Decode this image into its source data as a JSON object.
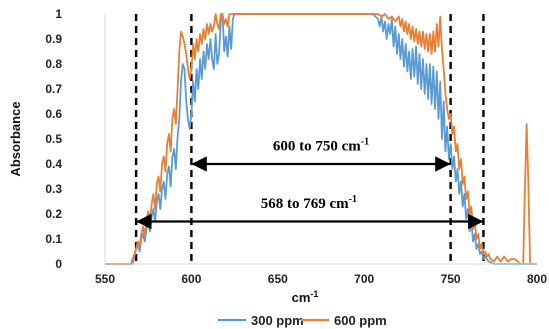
{
  "chart_data": {
    "type": "line",
    "xlabel": "cm",
    "xlabel_sup": "-1",
    "ylabel": "Absorbance",
    "xlim": [
      550,
      800
    ],
    "ylim": [
      0,
      1
    ],
    "x_ticks": [
      550,
      600,
      650,
      700,
      750,
      800
    ],
    "y_ticks": [
      0,
      0.1,
      0.2,
      0.3,
      0.4,
      0.5,
      0.6,
      0.7,
      0.8,
      0.9,
      1
    ],
    "grid": false,
    "legend": {
      "position": "bottom"
    },
    "series": [
      {
        "name": "300 ppm",
        "color": "#5B9BD5",
        "points": [
          [
            550,
            0
          ],
          [
            560,
            0
          ],
          [
            565,
            0
          ],
          [
            566,
            0.02
          ],
          [
            567,
            0.04
          ],
          [
            568,
            0.06
          ],
          [
            569,
            0.08
          ],
          [
            570,
            0.05
          ],
          [
            571,
            0.1
          ],
          [
            572,
            0.12
          ],
          [
            573,
            0.09
          ],
          [
            574,
            0.14
          ],
          [
            575,
            0.17
          ],
          [
            576,
            0.13
          ],
          [
            577,
            0.19
          ],
          [
            578,
            0.22
          ],
          [
            579,
            0.17
          ],
          [
            580,
            0.25
          ],
          [
            581,
            0.28
          ],
          [
            582,
            0.22
          ],
          [
            583,
            0.3
          ],
          [
            584,
            0.33
          ],
          [
            585,
            0.26
          ],
          [
            586,
            0.36
          ],
          [
            587,
            0.39
          ],
          [
            588,
            0.31
          ],
          [
            589,
            0.43
          ],
          [
            590,
            0.46
          ],
          [
            591,
            0.38
          ],
          [
            592,
            0.51
          ],
          [
            593,
            0.58
          ],
          [
            594,
            0.73
          ],
          [
            595,
            0.8
          ],
          [
            596,
            0.78
          ],
          [
            597,
            0.65
          ],
          [
            598,
            0.58
          ],
          [
            599,
            0.54
          ],
          [
            600,
            0.6
          ],
          [
            601,
            0.73
          ],
          [
            602,
            0.65
          ],
          [
            603,
            0.78
          ],
          [
            604,
            0.7
          ],
          [
            605,
            0.82
          ],
          [
            606,
            0.74
          ],
          [
            607,
            0.85
          ],
          [
            608,
            0.78
          ],
          [
            609,
            0.88
          ],
          [
            610,
            0.82
          ],
          [
            611,
            0.9
          ],
          [
            612,
            0.82
          ],
          [
            613,
            0.78
          ],
          [
            614,
            0.92
          ],
          [
            615,
            0.8
          ],
          [
            616,
            0.84
          ],
          [
            617,
            0.97
          ],
          [
            618,
            1.0
          ],
          [
            619,
            0.85
          ],
          [
            620,
            0.91
          ],
          [
            621,
            0.83
          ],
          [
            622,
            0.95
          ],
          [
            623,
            0.86
          ],
          [
            624,
            0.98
          ],
          [
            625,
            1.0
          ],
          [
            630,
            1.0
          ],
          [
            640,
            1.0
          ],
          [
            650,
            1.0
          ],
          [
            660,
            1.0
          ],
          [
            670,
            1.0
          ],
          [
            680,
            1.0
          ],
          [
            690,
            1.0
          ],
          [
            700,
            1.0
          ],
          [
            705,
            1.0
          ],
          [
            708,
            0.98
          ],
          [
            709,
            0.95
          ],
          [
            710,
            0.99
          ],
          [
            711,
            0.93
          ],
          [
            712,
            0.97
          ],
          [
            713,
            0.9
          ],
          [
            714,
            0.96
          ],
          [
            715,
            0.92
          ],
          [
            716,
            0.98
          ],
          [
            717,
            0.87
          ],
          [
            718,
            0.95
          ],
          [
            719,
            0.84
          ],
          [
            720,
            0.92
          ],
          [
            721,
            0.82
          ],
          [
            722,
            0.9
          ],
          [
            723,
            0.79
          ],
          [
            724,
            0.88
          ],
          [
            725,
            0.77
          ],
          [
            726,
            0.85
          ],
          [
            727,
            0.74
          ],
          [
            728,
            0.86
          ],
          [
            729,
            0.75
          ],
          [
            730,
            0.87
          ],
          [
            731,
            0.72
          ],
          [
            732,
            0.84
          ],
          [
            733,
            0.7
          ],
          [
            734,
            0.82
          ],
          [
            735,
            0.68
          ],
          [
            736,
            0.8
          ],
          [
            737,
            0.66
          ],
          [
            738,
            0.8
          ],
          [
            739,
            0.64
          ],
          [
            740,
            0.79
          ],
          [
            741,
            0.62
          ],
          [
            742,
            0.77
          ],
          [
            743,
            0.58
          ],
          [
            744,
            0.73
          ],
          [
            745,
            0.5
          ],
          [
            746,
            0.65
          ],
          [
            747,
            0.45
          ],
          [
            748,
            0.55
          ],
          [
            749,
            0.42
          ],
          [
            750,
            0.48
          ],
          [
            751,
            0.38
          ],
          [
            752,
            0.43
          ],
          [
            753,
            0.33
          ],
          [
            754,
            0.38
          ],
          [
            755,
            0.28
          ],
          [
            756,
            0.33
          ],
          [
            757,
            0.23
          ],
          [
            758,
            0.28
          ],
          [
            759,
            0.18
          ],
          [
            760,
            0.22
          ],
          [
            761,
            0.13
          ],
          [
            762,
            0.17
          ],
          [
            763,
            0.09
          ],
          [
            764,
            0.12
          ],
          [
            765,
            0.06
          ],
          [
            766,
            0.08
          ],
          [
            767,
            0.04
          ],
          [
            768,
            0.05
          ],
          [
            769,
            0.02
          ],
          [
            770,
            0.03
          ],
          [
            772,
            0.01
          ],
          [
            775,
            0
          ],
          [
            800,
            0
          ]
        ]
      },
      {
        "name": "600 ppm",
        "color": "#ED7D31",
        "points": [
          [
            550,
            0
          ],
          [
            563,
            0
          ],
          [
            566,
            0
          ],
          [
            567,
            0.03
          ],
          [
            568,
            0.06
          ],
          [
            569,
            0.09
          ],
          [
            570,
            0.07
          ],
          [
            571,
            0.12
          ],
          [
            572,
            0.15
          ],
          [
            573,
            0.11
          ],
          [
            574,
            0.18
          ],
          [
            575,
            0.21
          ],
          [
            576,
            0.17
          ],
          [
            577,
            0.24
          ],
          [
            578,
            0.28
          ],
          [
            579,
            0.22
          ],
          [
            580,
            0.32
          ],
          [
            581,
            0.35
          ],
          [
            582,
            0.29
          ],
          [
            583,
            0.4
          ],
          [
            584,
            0.43
          ],
          [
            585,
            0.37
          ],
          [
            586,
            0.48
          ],
          [
            587,
            0.52
          ],
          [
            588,
            0.45
          ],
          [
            589,
            0.58
          ],
          [
            590,
            0.62
          ],
          [
            591,
            0.56
          ],
          [
            592,
            0.7
          ],
          [
            593,
            0.85
          ],
          [
            594,
            0.93
          ],
          [
            595,
            0.91
          ],
          [
            596,
            0.88
          ],
          [
            597,
            0.84
          ],
          [
            598,
            0.78
          ],
          [
            599,
            0.74
          ],
          [
            600,
            0.78
          ],
          [
            601,
            0.88
          ],
          [
            602,
            0.82
          ],
          [
            603,
            0.9
          ],
          [
            604,
            0.85
          ],
          [
            605,
            0.92
          ],
          [
            606,
            0.88
          ],
          [
            607,
            0.94
          ],
          [
            608,
            0.9
          ],
          [
            609,
            0.96
          ],
          [
            610,
            0.92
          ],
          [
            611,
            0.96
          ],
          [
            612,
            0.93
          ],
          [
            613,
            0.95
          ],
          [
            614,
            1.0
          ],
          [
            615,
            0.96
          ],
          [
            616,
            0.94
          ],
          [
            617,
            1.0
          ],
          [
            618,
            1.0
          ],
          [
            619,
            0.96
          ],
          [
            620,
            0.98
          ],
          [
            621,
            0.95
          ],
          [
            622,
            1.0
          ],
          [
            625,
            1.0
          ],
          [
            640,
            1.0
          ],
          [
            660,
            1.0
          ],
          [
            680,
            1.0
          ],
          [
            700,
            1.0
          ],
          [
            708,
            1.0
          ],
          [
            710,
            0.99
          ],
          [
            712,
            1.0
          ],
          [
            714,
            0.98
          ],
          [
            716,
            0.99
          ],
          [
            718,
            0.97
          ],
          [
            720,
            0.99
          ],
          [
            721,
            0.95
          ],
          [
            722,
            0.98
          ],
          [
            723,
            0.93
          ],
          [
            724,
            0.97
          ],
          [
            725,
            0.92
          ],
          [
            726,
            0.96
          ],
          [
            727,
            0.9
          ],
          [
            728,
            0.95
          ],
          [
            729,
            0.89
          ],
          [
            730,
            0.94
          ],
          [
            731,
            0.88
          ],
          [
            732,
            0.93
          ],
          [
            733,
            0.87
          ],
          [
            734,
            0.93
          ],
          [
            735,
            0.86
          ],
          [
            736,
            0.92
          ],
          [
            737,
            0.85
          ],
          [
            738,
            0.92
          ],
          [
            739,
            0.84
          ],
          [
            740,
            0.93
          ],
          [
            741,
            0.85
          ],
          [
            742,
            0.96
          ],
          [
            743,
            0.87
          ],
          [
            744,
            0.99
          ],
          [
            745,
            0.86
          ],
          [
            746,
            0.78
          ],
          [
            747,
            0.68
          ],
          [
            748,
            0.62
          ],
          [
            749,
            0.58
          ],
          [
            750,
            0.6
          ],
          [
            751,
            0.52
          ],
          [
            752,
            0.55
          ],
          [
            753,
            0.45
          ],
          [
            754,
            0.48
          ],
          [
            755,
            0.38
          ],
          [
            756,
            0.42
          ],
          [
            757,
            0.32
          ],
          [
            758,
            0.35
          ],
          [
            759,
            0.26
          ],
          [
            760,
            0.29
          ],
          [
            761,
            0.2
          ],
          [
            762,
            0.23
          ],
          [
            763,
            0.14
          ],
          [
            764,
            0.17
          ],
          [
            765,
            0.1
          ],
          [
            766,
            0.12
          ],
          [
            767,
            0.06
          ],
          [
            768,
            0.08
          ],
          [
            769,
            0.04
          ],
          [
            770,
            0.05
          ],
          [
            771,
            0.03
          ],
          [
            772,
            0.04
          ],
          [
            773,
            0.02
          ],
          [
            775,
            0.01
          ],
          [
            777,
            0.03
          ],
          [
            779,
            0.01
          ],
          [
            781,
            0.03
          ],
          [
            783,
            0.01
          ],
          [
            785,
            0.02
          ],
          [
            787,
            0.02
          ],
          [
            789,
            0.01
          ],
          [
            790,
            0
          ],
          [
            792,
            0
          ],
          [
            793,
            0.3
          ],
          [
            794,
            0.56
          ],
          [
            795,
            0.32
          ],
          [
            796,
            0
          ],
          [
            800,
            0
          ]
        ]
      }
    ],
    "annotations": [
      {
        "label": "600 to 750 cm",
        "sup": "-1",
        "x_start": 600,
        "x_end": 750,
        "y": 0.4,
        "text_y": 0.455,
        "text_x": 675
      },
      {
        "label": "568 to 769 cm",
        "sup": "-1",
        "x_start": 568,
        "x_end": 769,
        "y": 0.17,
        "text_y": 0.225,
        "text_x": 668
      }
    ],
    "vlines": [
      568,
      600,
      750,
      769
    ]
  }
}
